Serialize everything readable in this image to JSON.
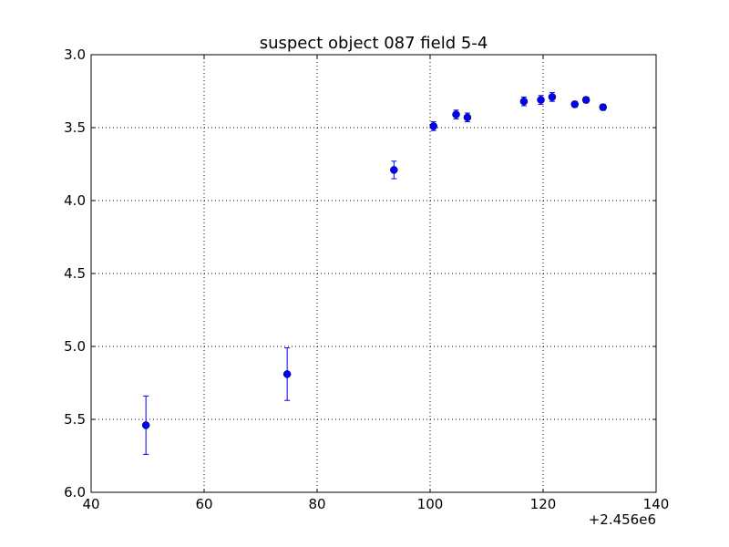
{
  "chart_data": {
    "type": "scatter",
    "title": "suspect object 087 field 5-4",
    "xlabel": "",
    "ylabel": "",
    "x_offset_label": "+2.456e6",
    "xlim": [
      40,
      140
    ],
    "ylim": [
      3.0,
      6.0
    ],
    "y_inverted": true,
    "grid": true,
    "x_ticks": [
      40,
      60,
      80,
      100,
      120,
      140
    ],
    "x_tick_labels": [
      "40",
      "60",
      "80",
      "100",
      "120",
      "140"
    ],
    "y_ticks": [
      3.0,
      3.5,
      4.0,
      4.5,
      5.0,
      5.5,
      6.0
    ],
    "y_tick_labels": [
      "3.0",
      "3.5",
      "4.0",
      "4.5",
      "5.0",
      "5.5",
      "6.0"
    ],
    "series": [
      {
        "color": "#0000ff",
        "marker": "circle",
        "points": [
          {
            "x": 49.7,
            "y": 5.54,
            "yerr": 0.2
          },
          {
            "x": 74.7,
            "y": 5.19,
            "yerr": 0.18
          },
          {
            "x": 93.6,
            "y": 3.79,
            "yerr": 0.06
          },
          {
            "x": 100.6,
            "y": 3.49,
            "yerr": 0.03
          },
          {
            "x": 104.6,
            "y": 3.41,
            "yerr": 0.03
          },
          {
            "x": 106.6,
            "y": 3.43,
            "yerr": 0.03
          },
          {
            "x": 116.6,
            "y": 3.32,
            "yerr": 0.03
          },
          {
            "x": 119.6,
            "y": 3.31,
            "yerr": 0.03
          },
          {
            "x": 121.6,
            "y": 3.29,
            "yerr": 0.03
          },
          {
            "x": 125.6,
            "y": 3.34,
            "yerr": 0.02
          },
          {
            "x": 127.6,
            "y": 3.31,
            "yerr": 0.02
          },
          {
            "x": 130.6,
            "y": 3.36,
            "yerr": 0.02
          }
        ]
      }
    ]
  }
}
